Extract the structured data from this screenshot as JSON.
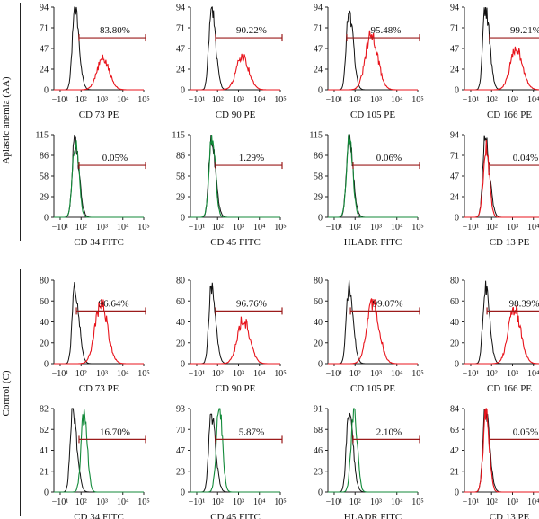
{
  "groups": [
    {
      "label": "Aplastic anemia (AA)"
    },
    {
      "label": "Control (C)"
    }
  ],
  "colors": {
    "isotype": "#111111",
    "pe": "#e8141c",
    "fitc": "#138a3a",
    "gate": "#9b1b1b",
    "axis": "#222222"
  },
  "x_tick_labels": [
    "−10¹",
    "10²",
    "10³",
    "10⁴",
    "10⁵"
  ],
  "chart_data": [
    {
      "type": "histogram",
      "group": "Aplastic anemia (AA)",
      "xlabel": "CD 73 PE",
      "yticks": [
        "0",
        "24",
        "47",
        "71",
        "94"
      ],
      "ylim": [
        0,
        94
      ],
      "xscale": "log",
      "gate_label": "83.80%",
      "gate_range": [
        80,
        100000
      ],
      "stain": "PE",
      "isotype_peak": [
        50,
        94
      ],
      "stain_peak": [
        1100,
        35
      ]
    },
    {
      "type": "histogram",
      "group": "Aplastic anemia (AA)",
      "xlabel": "CD 90 PE",
      "yticks": [
        "0",
        "24",
        "47",
        "71",
        "94"
      ],
      "ylim": [
        0,
        94
      ],
      "xscale": "log",
      "gate_label": "90.22%",
      "gate_range": [
        80,
        100000
      ],
      "stain": "PE",
      "isotype_peak": [
        50,
        94
      ],
      "stain_peak": [
        1500,
        38
      ]
    },
    {
      "type": "histogram",
      "group": "Aplastic anemia (AA)",
      "xlabel": "CD 105 PE",
      "yticks": [
        "0",
        "24",
        "47",
        "71",
        "94"
      ],
      "ylim": [
        0,
        94
      ],
      "xscale": "log",
      "gate_label": "95.48%",
      "gate_range": [
        40,
        100000
      ],
      "stain": "PE",
      "isotype_peak": [
        50,
        94
      ],
      "stain_peak": [
        600,
        62
      ]
    },
    {
      "type": "histogram",
      "group": "Aplastic anemia (AA)",
      "xlabel": "CD 166 PE",
      "yticks": [
        "0",
        "24",
        "47",
        "71",
        "94"
      ],
      "ylim": [
        0,
        94
      ],
      "xscale": "log",
      "gate_label": "99.21%",
      "gate_range": [
        80,
        100000
      ],
      "stain": "PE",
      "isotype_peak": [
        50,
        94
      ],
      "stain_peak": [
        1500,
        47
      ]
    },
    {
      "type": "histogram",
      "group": "Aplastic anemia (AA)",
      "xlabel": "CD 34 FITC",
      "yticks": [
        "0",
        "29",
        "58",
        "86",
        "115"
      ],
      "ylim": [
        0,
        115
      ],
      "xscale": "log",
      "gate_label": "0.05%",
      "gate_range": [
        80,
        100000
      ],
      "stain": "FITC",
      "isotype_peak": [
        50,
        110
      ],
      "stain_peak": [
        55,
        112
      ]
    },
    {
      "type": "histogram",
      "group": "Aplastic anemia (AA)",
      "xlabel": "CD 45 FITC",
      "yticks": [
        "0",
        "29",
        "58",
        "86",
        "115"
      ],
      "ylim": [
        0,
        115
      ],
      "xscale": "log",
      "gate_label": "1.29%",
      "gate_range": [
        80,
        100000
      ],
      "stain": "FITC",
      "isotype_peak": [
        50,
        110
      ],
      "stain_peak": [
        55,
        112
      ]
    },
    {
      "type": "histogram",
      "group": "Aplastic anemia (AA)",
      "xlabel": "HLADR FITC",
      "yticks": [
        "0",
        "29",
        "58",
        "86",
        "115"
      ],
      "ylim": [
        0,
        115
      ],
      "xscale": "log",
      "gate_label": "0.06%",
      "gate_range": [
        80,
        100000
      ],
      "stain": "FITC",
      "isotype_peak": [
        50,
        110
      ],
      "stain_peak": [
        55,
        112
      ]
    },
    {
      "type": "histogram",
      "group": "Aplastic anemia (AA)",
      "xlabel": "CD 13 PE",
      "yticks": [
        "0",
        "24",
        "47",
        "71",
        "94"
      ],
      "ylim": [
        0,
        94
      ],
      "xscale": "log",
      "gate_label": "0.04%",
      "gate_range": [
        80,
        100000
      ],
      "stain": "PE",
      "isotype_peak": [
        50,
        90
      ],
      "stain_peak": [
        55,
        78
      ]
    },
    {
      "type": "histogram",
      "group": "Control (C)",
      "xlabel": "CD 73 PE",
      "yticks": [
        "0",
        "20",
        "40",
        "60",
        "80"
      ],
      "ylim": [
        0,
        80
      ],
      "xscale": "log",
      "gate_label": "96.64%",
      "gate_range": [
        60,
        100000
      ],
      "stain": "PE",
      "isotype_peak": [
        50,
        74
      ],
      "stain_peak": [
        900,
        58
      ]
    },
    {
      "type": "histogram",
      "group": "Control (C)",
      "xlabel": "CD 90 PE",
      "yticks": [
        "0",
        "20",
        "40",
        "60",
        "80"
      ],
      "ylim": [
        0,
        80
      ],
      "xscale": "log",
      "gate_label": "96.76%",
      "gate_range": [
        80,
        100000
      ],
      "stain": "PE",
      "isotype_peak": [
        50,
        74
      ],
      "stain_peak": [
        1700,
        42
      ]
    },
    {
      "type": "histogram",
      "group": "Control (C)",
      "xlabel": "CD 105 PE",
      "yticks": [
        "0",
        "20",
        "40",
        "60",
        "80"
      ],
      "ylim": [
        0,
        80
      ],
      "xscale": "log",
      "gate_label": "99.07%",
      "gate_range": [
        60,
        100000
      ],
      "stain": "PE",
      "isotype_peak": [
        50,
        74
      ],
      "stain_peak": [
        700,
        57
      ]
    },
    {
      "type": "histogram",
      "group": "Control (C)",
      "xlabel": "CD 166 PE",
      "yticks": [
        "0",
        "20",
        "40",
        "60",
        "80"
      ],
      "ylim": [
        0,
        80
      ],
      "xscale": "log",
      "gate_label": "98.39%",
      "gate_range": [
        60,
        100000
      ],
      "stain": "PE",
      "isotype_peak": [
        50,
        74
      ],
      "stain_peak": [
        1200,
        52
      ]
    },
    {
      "type": "histogram",
      "group": "Control (C)",
      "xlabel": "CD 34 FITC",
      "yticks": [
        "0",
        "21",
        "41",
        "62",
        "82"
      ],
      "ylim": [
        0,
        82
      ],
      "xscale": "log",
      "gate_label": "16.70%",
      "gate_range": [
        80,
        100000
      ],
      "stain": "FITC",
      "isotype_peak": [
        40,
        80
      ],
      "stain_peak": [
        140,
        76
      ]
    },
    {
      "type": "histogram",
      "group": "Control (C)",
      "xlabel": "CD 45 FITC",
      "yticks": [
        "0",
        "23",
        "47",
        "70",
        "93"
      ],
      "ylim": [
        0,
        93
      ],
      "xscale": "log",
      "gate_label": "5.87%",
      "gate_range": [
        80,
        100000
      ],
      "stain": "FITC",
      "isotype_peak": [
        50,
        88
      ],
      "stain_peak": [
        120,
        92
      ]
    },
    {
      "type": "histogram",
      "group": "Control (C)",
      "xlabel": "HLADR FITC",
      "yticks": [
        "0",
        "23",
        "46",
        "68",
        "91"
      ],
      "ylim": [
        0,
        91
      ],
      "xscale": "log",
      "gate_label": "2.10%",
      "gate_range": [
        80,
        100000
      ],
      "stain": "FITC",
      "isotype_peak": [
        50,
        86
      ],
      "stain_peak": [
        90,
        88
      ]
    },
    {
      "type": "histogram",
      "group": "Control (C)",
      "xlabel": "CD 13 PE",
      "yticks": [
        "0",
        "21",
        "42",
        "63",
        "84"
      ],
      "ylim": [
        0,
        84
      ],
      "xscale": "log",
      "gate_label": "0.05%",
      "gate_range": [
        80,
        100000
      ],
      "stain": "PE",
      "isotype_peak": [
        50,
        82
      ],
      "stain_peak": [
        55,
        80
      ]
    }
  ]
}
